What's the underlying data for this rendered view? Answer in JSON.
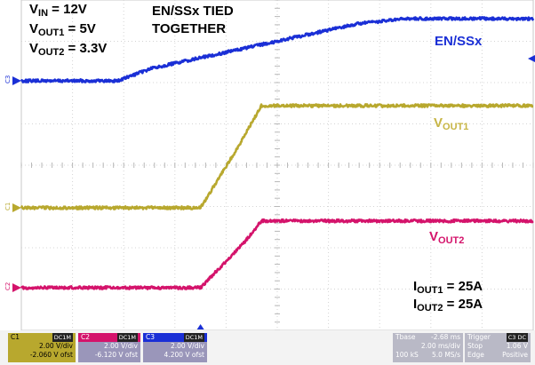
{
  "chart_data": {
    "type": "line",
    "title": "",
    "xlabel": "",
    "ylabel": "",
    "grid": true,
    "xlim": [
      -9.68,
      10.32
    ],
    "x_unit": "ms",
    "series": [
      {
        "name": "EN/SSx",
        "channel": "C3",
        "color": "#1a2fd6",
        "volts_per_div": 2.0,
        "offset_v": 4.2,
        "points": [
          [
            -9.68,
            0.0
          ],
          [
            -5.9,
            0.0
          ],
          [
            -4.6,
            1.0
          ],
          [
            3.5,
            4.6
          ],
          [
            5.4,
            5.0
          ],
          [
            10.32,
            5.0
          ]
        ]
      },
      {
        "name": "VOUT1",
        "channel": "C1",
        "color": "#b8a82e",
        "volts_per_div": 2.0,
        "offset_v": -2.06,
        "points": [
          [
            -9.68,
            0.0
          ],
          [
            -2.68,
            0.0
          ],
          [
            -1.2,
            3.0
          ],
          [
            -0.3,
            5.0
          ],
          [
            10.32,
            5.0
          ]
        ]
      },
      {
        "name": "VOUT2",
        "channel": "C2",
        "color": "#d4136b",
        "volts_per_div": 2.0,
        "offset_v": -6.12,
        "points": [
          [
            -9.68,
            0.0
          ],
          [
            -2.68,
            0.0
          ],
          [
            -1.0,
            2.2
          ],
          [
            -0.3,
            3.3
          ],
          [
            10.32,
            3.3
          ]
        ]
      }
    ]
  },
  "annotations": {
    "vin_main": "V",
    "vin_sub": "IN",
    "vin_val": " = 12V",
    "vout1_main": "V",
    "vout1_sub": "OUT1",
    "vout1_val": " = 5V",
    "vout2_main": "V",
    "vout2_sub": "OUT2",
    "vout2_val": " = 3.3V",
    "tied_line1": "EN/SSx TIED",
    "tied_line2": "TOGETHER",
    "iout1_main": "I",
    "iout1_sub": "OUT1",
    "iout1_val": " = 25A",
    "iout2_main": "I",
    "iout2_sub": "OUT2",
    "iout2_val": " = 25A"
  },
  "labels": {
    "en_ss": "EN/SSx",
    "vout1_main": "V",
    "vout1_sub": "OUT1",
    "vout2_main": "V",
    "vout2_sub": "OUT2"
  },
  "channel_markers": {
    "c1": "C1",
    "c2": "C2",
    "c3": "C3"
  },
  "bottom_bar": {
    "ch1": {
      "name": "C1",
      "tag": "DC1M",
      "vdiv": "2.00 V/div",
      "ofst": "-2.060 V ofst",
      "bg": "#b8a82e"
    },
    "ch2": {
      "name": "C2",
      "tag": "DC1M",
      "vdiv": "2.00 V/div",
      "ofst": "-6.120 V ofst",
      "bg": "#9a96ba",
      "accent": "#d4136b"
    },
    "ch3": {
      "name": "C3",
      "tag": "DC1M",
      "vdiv": "2.00 V/div",
      "ofst": "4.200 V ofst",
      "bg": "#9a96ba",
      "accent": "#1a2fd6"
    },
    "timebase": {
      "label": "Tbase",
      "delay": "-2.68 ms",
      "time_div": "2.00 ms/div",
      "samples": "100 kS",
      "rate": "5.0 MS/s"
    },
    "trigger": {
      "label": "Trigger",
      "tag": "C3 DC",
      "mode": "Stop",
      "level": "1.06 V",
      "type": "Edge",
      "slope": "Positive"
    }
  }
}
